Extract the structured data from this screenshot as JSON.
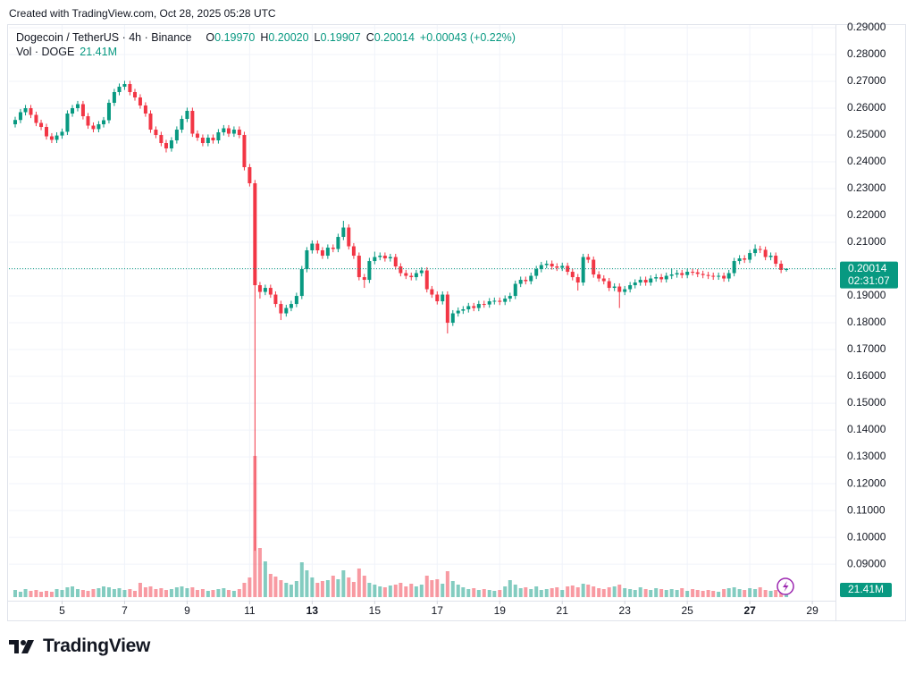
{
  "header": {
    "created": "Created with TradingView.com, Oct 28, 2025 05:28 UTC",
    "brand": "TradingView"
  },
  "chart_data": {
    "type": "candlestick",
    "title": "Dogecoin / TetherUS · 4h · Binance",
    "ohlc_legend": [
      {
        "key": "O",
        "value": "0.19970"
      },
      {
        "key": "H",
        "value": "0.20020"
      },
      {
        "key": "L",
        "value": "0.19907"
      },
      {
        "key": "C",
        "value": "0.20014"
      }
    ],
    "change": "+0.00043 (+0.22%)",
    "volume_title": "Vol · DOGE",
    "volume_last_label": "21.41M",
    "last_price": {
      "value": 0.20014,
      "label": "0.20014"
    },
    "countdown": "02:31:07",
    "up_color": "#089981",
    "down_color": "#f23645",
    "grid": true,
    "xlim": [
      3.3,
      29.74
    ],
    "xticks": [
      5,
      7,
      9,
      11,
      13,
      15,
      17,
      19,
      21,
      23,
      25,
      27,
      29
    ],
    "bold_xticks": [
      13,
      27
    ],
    "ylim": [
      0.0777,
      0.291
    ],
    "yticks": [
      {
        "value": 0.29,
        "label": "0.29000"
      },
      {
        "value": 0.28,
        "label": "0.28000"
      },
      {
        "value": 0.27,
        "label": "0.27000"
      },
      {
        "value": 0.26,
        "label": "0.26000"
      },
      {
        "value": 0.25,
        "label": "0.25000"
      },
      {
        "value": 0.24,
        "label": "0.24000"
      },
      {
        "value": 0.23,
        "label": "0.23000"
      },
      {
        "value": 0.22,
        "label": "0.22000"
      },
      {
        "value": 0.21,
        "label": "0.21000"
      },
      {
        "value": 0.2,
        "label": "0.20000"
      },
      {
        "value": 0.19,
        "label": "0.19000"
      },
      {
        "value": 0.18,
        "label": "0.18000"
      },
      {
        "value": 0.17,
        "label": "0.17000"
      },
      {
        "value": 0.16,
        "label": "0.16000"
      },
      {
        "value": 0.15,
        "label": "0.15000"
      },
      {
        "value": 0.14,
        "label": "0.14000"
      },
      {
        "value": 0.13,
        "label": "0.13000"
      },
      {
        "value": 0.12,
        "label": "0.12000"
      },
      {
        "value": 0.11,
        "label": "0.11000"
      },
      {
        "value": 0.1,
        "label": "0.10000"
      },
      {
        "value": 0.09,
        "label": "0.09000"
      }
    ],
    "volume_ylim": [
      0,
      800
    ],
    "x": [
      3.5,
      3.67,
      3.83,
      4,
      4.17,
      4.33,
      4.5,
      4.67,
      4.83,
      5,
      5.17,
      5.33,
      5.5,
      5.67,
      5.83,
      6,
      6.17,
      6.33,
      6.5,
      6.67,
      6.83,
      7,
      7.17,
      7.33,
      7.5,
      7.67,
      7.83,
      8,
      8.17,
      8.33,
      8.5,
      8.67,
      8.83,
      9,
      9.17,
      9.33,
      9.5,
      9.67,
      9.83,
      10,
      10.17,
      10.33,
      10.5,
      10.67,
      10.83,
      11,
      11.17,
      11.33,
      11.5,
      11.67,
      11.83,
      12,
      12.17,
      12.33,
      12.5,
      12.67,
      12.83,
      13,
      13.17,
      13.33,
      13.5,
      13.67,
      13.83,
      14,
      14.17,
      14.33,
      14.5,
      14.67,
      14.83,
      15,
      15.17,
      15.33,
      15.5,
      15.67,
      15.83,
      16,
      16.17,
      16.33,
      16.5,
      16.67,
      16.83,
      17,
      17.17,
      17.33,
      17.5,
      17.67,
      17.83,
      18,
      18.17,
      18.33,
      18.5,
      18.67,
      18.83,
      19,
      19.17,
      19.33,
      19.5,
      19.67,
      19.83,
      20,
      20.17,
      20.33,
      20.5,
      20.67,
      20.83,
      21,
      21.17,
      21.33,
      21.5,
      21.67,
      21.83,
      22,
      22.17,
      22.33,
      22.5,
      22.67,
      22.83,
      23,
      23.17,
      23.33,
      23.5,
      23.67,
      23.83,
      24,
      24.17,
      24.33,
      24.5,
      24.67,
      24.83,
      25,
      25.17,
      25.33,
      25.5,
      25.67,
      25.83,
      26,
      26.17,
      26.33,
      26.5,
      26.67,
      26.83,
      27,
      27.17,
      27.33,
      27.5,
      27.67,
      27.83,
      28,
      28.17
    ],
    "open": [
      0.254,
      0.2556,
      0.2585,
      0.26,
      0.2575,
      0.2545,
      0.253,
      0.2495,
      0.2482,
      0.2498,
      0.2512,
      0.258,
      0.26,
      0.2615,
      0.257,
      0.2535,
      0.2522,
      0.254,
      0.2555,
      0.262,
      0.266,
      0.268,
      0.269,
      0.266,
      0.264,
      0.261,
      0.258,
      0.252,
      0.25,
      0.247,
      0.245,
      0.248,
      0.252,
      0.256,
      0.259,
      0.2505,
      0.249,
      0.247,
      0.249,
      0.248,
      0.251,
      0.2525,
      0.2505,
      0.252,
      0.25,
      0.238,
      0.232,
      0.194,
      0.1915,
      0.193,
      0.1905,
      0.187,
      0.1835,
      0.1855,
      0.187,
      0.19,
      0.2,
      0.207,
      0.2095,
      0.207,
      0.205,
      0.208,
      0.2075,
      0.212,
      0.2155,
      0.2085,
      0.205,
      0.197,
      0.196,
      0.203,
      0.2045,
      0.205,
      0.204,
      0.2045,
      0.201,
      0.1985,
      0.1975,
      0.197,
      0.1985,
      0.1995,
      0.1925,
      0.1905,
      0.188,
      0.1905,
      0.18,
      0.1835,
      0.1845,
      0.185,
      0.1862,
      0.1855,
      0.187,
      0.1868,
      0.188,
      0.1882,
      0.1878,
      0.189,
      0.19,
      0.1945,
      0.196,
      0.1955,
      0.1975,
      0.2,
      0.2015,
      0.202,
      0.201,
      0.2005,
      0.2012,
      0.199,
      0.197,
      0.195,
      0.2045,
      0.2035,
      0.198,
      0.1965,
      0.1955,
      0.193,
      0.1935,
      0.1915,
      0.1925,
      0.194,
      0.195,
      0.196,
      0.195,
      0.1965,
      0.197,
      0.1962,
      0.1975,
      0.198,
      0.1985,
      0.1978,
      0.199,
      0.1988,
      0.1982,
      0.1978,
      0.1975,
      0.1972,
      0.1975,
      0.1965,
      0.1985,
      0.203,
      0.204,
      0.2035,
      0.206,
      0.2075,
      0.2072,
      0.2045,
      0.205,
      0.202,
      0.1997
    ],
    "high": [
      0.2568,
      0.2597,
      0.2612,
      0.2612,
      0.2587,
      0.2557,
      0.2542,
      0.2507,
      0.251,
      0.2524,
      0.2592,
      0.2612,
      0.2627,
      0.2627,
      0.2582,
      0.2547,
      0.2552,
      0.2567,
      0.2632,
      0.2672,
      0.2692,
      0.2702,
      0.2702,
      0.2672,
      0.2652,
      0.2622,
      0.2592,
      0.2532,
      0.2512,
      0.2482,
      0.2492,
      0.2532,
      0.2572,
      0.2602,
      0.2602,
      0.2517,
      0.2502,
      0.2502,
      0.2502,
      0.2522,
      0.2537,
      0.2537,
      0.2532,
      0.2532,
      0.2512,
      0.2392,
      0.2332,
      0.1952,
      0.1942,
      0.1942,
      0.1917,
      0.1882,
      0.1867,
      0.1882,
      0.1912,
      0.2012,
      0.2082,
      0.2107,
      0.2107,
      0.2082,
      0.2092,
      0.2092,
      0.2132,
      0.218,
      0.2167,
      0.2097,
      0.2062,
      0.1982,
      0.2042,
      0.2065,
      0.2062,
      0.2062,
      0.2057,
      0.2057,
      0.2022,
      0.1997,
      0.1987,
      0.1997,
      0.2007,
      0.2007,
      0.1937,
      0.1917,
      0.1917,
      0.1917,
      0.1847,
      0.1857,
      0.1862,
      0.1874,
      0.1874,
      0.1882,
      0.1882,
      0.1892,
      0.1894,
      0.1894,
      0.1902,
      0.1912,
      0.1957,
      0.1972,
      0.1972,
      0.1987,
      0.2012,
      0.2027,
      0.2032,
      0.2032,
      0.2022,
      0.2024,
      0.2024,
      0.2002,
      0.1982,
      0.2057,
      0.2057,
      0.2047,
      0.1992,
      0.1977,
      0.1967,
      0.1947,
      0.1947,
      0.1937,
      0.1952,
      0.1962,
      0.1972,
      0.1972,
      0.1977,
      0.1982,
      0.1982,
      0.1987,
      0.2002,
      0.1997,
      0.1997,
      0.2002,
      0.2002,
      0.2,
      0.1994,
      0.199,
      0.1987,
      0.1987,
      0.1987,
      0.1997,
      0.2042,
      0.2052,
      0.2052,
      0.2072,
      0.2092,
      0.2087,
      0.2084,
      0.2062,
      0.2062,
      0.2032,
      0.2002
    ],
    "low": [
      0.2528,
      0.2544,
      0.2573,
      0.2563,
      0.2533,
      0.2518,
      0.2483,
      0.247,
      0.247,
      0.2486,
      0.25,
      0.2568,
      0.2588,
      0.2558,
      0.2523,
      0.251,
      0.251,
      0.2528,
      0.2543,
      0.2608,
      0.2648,
      0.2668,
      0.2648,
      0.2628,
      0.2598,
      0.2568,
      0.2508,
      0.2488,
      0.2458,
      0.2435,
      0.2438,
      0.2468,
      0.2508,
      0.2548,
      0.2493,
      0.2478,
      0.2458,
      0.2458,
      0.2468,
      0.2468,
      0.2498,
      0.2493,
      0.2493,
      0.2488,
      0.2368,
      0.2308,
      0.095,
      0.189,
      0.1903,
      0.1893,
      0.1858,
      0.181,
      0.1823,
      0.1843,
      0.1858,
      0.1888,
      0.1988,
      0.2058,
      0.2058,
      0.2038,
      0.2038,
      0.2063,
      0.2063,
      0.2108,
      0.2073,
      0.2038,
      0.1958,
      0.193,
      0.1948,
      0.2018,
      0.2033,
      0.2028,
      0.2028,
      0.1998,
      0.1973,
      0.1963,
      0.1958,
      0.1958,
      0.1973,
      0.1913,
      0.1893,
      0.1868,
      0.1868,
      0.176,
      0.1788,
      0.1823,
      0.1833,
      0.1838,
      0.1843,
      0.1843,
      0.1856,
      0.1856,
      0.1868,
      0.1866,
      0.1866,
      0.1878,
      0.1888,
      0.1933,
      0.1943,
      0.1943,
      0.1963,
      0.1988,
      0.2003,
      0.1998,
      0.1993,
      0.1993,
      0.1978,
      0.1958,
      0.192,
      0.1938,
      0.2023,
      0.1968,
      0.1953,
      0.1943,
      0.1918,
      0.1918,
      0.1855,
      0.1903,
      0.1913,
      0.1928,
      0.1938,
      0.1938,
      0.1938,
      0.1953,
      0.195,
      0.195,
      0.1963,
      0.1968,
      0.1966,
      0.1966,
      0.1976,
      0.197,
      0.1966,
      0.1963,
      0.196,
      0.196,
      0.1953,
      0.1953,
      0.1973,
      0.2018,
      0.2023,
      0.2023,
      0.2048,
      0.206,
      0.2033,
      0.2033,
      0.2008,
      0.1985,
      0.19907
    ],
    "close": [
      0.2556,
      0.2585,
      0.26,
      0.2575,
      0.2545,
      0.253,
      0.2495,
      0.2482,
      0.2498,
      0.2512,
      0.258,
      0.26,
      0.2615,
      0.257,
      0.2535,
      0.2522,
      0.254,
      0.2555,
      0.262,
      0.266,
      0.268,
      0.269,
      0.266,
      0.264,
      0.261,
      0.258,
      0.252,
      0.25,
      0.247,
      0.245,
      0.248,
      0.252,
      0.256,
      0.259,
      0.2505,
      0.249,
      0.247,
      0.249,
      0.248,
      0.251,
      0.2525,
      0.2505,
      0.252,
      0.25,
      0.238,
      0.232,
      0.194,
      0.1915,
      0.193,
      0.1905,
      0.187,
      0.1835,
      0.1855,
      0.187,
      0.19,
      0.2,
      0.207,
      0.2095,
      0.207,
      0.205,
      0.208,
      0.2075,
      0.212,
      0.2155,
      0.2085,
      0.205,
      0.197,
      0.196,
      0.203,
      0.2045,
      0.205,
      0.204,
      0.2045,
      0.201,
      0.1985,
      0.1975,
      0.197,
      0.1985,
      0.1995,
      0.1925,
      0.1905,
      0.188,
      0.1905,
      0.18,
      0.1835,
      0.1845,
      0.185,
      0.1862,
      0.1855,
      0.187,
      0.1868,
      0.188,
      0.1882,
      0.1878,
      0.189,
      0.19,
      0.1945,
      0.196,
      0.1955,
      0.1975,
      0.2,
      0.2015,
      0.202,
      0.201,
      0.2005,
      0.2012,
      0.199,
      0.197,
      0.195,
      0.2045,
      0.2035,
      0.198,
      0.1965,
      0.1955,
      0.193,
      0.1935,
      0.1915,
      0.1925,
      0.194,
      0.195,
      0.196,
      0.195,
      0.1965,
      0.197,
      0.1962,
      0.1975,
      0.198,
      0.1985,
      0.1978,
      0.199,
      0.1988,
      0.1982,
      0.1978,
      0.1975,
      0.1972,
      0.1975,
      0.1965,
      0.1985,
      0.203,
      0.204,
      0.2035,
      0.206,
      0.2075,
      0.2072,
      0.2045,
      0.205,
      0.202,
      0.1997,
      0.20014
    ],
    "volume": [
      40,
      30,
      45,
      35,
      40,
      30,
      35,
      30,
      45,
      40,
      55,
      60,
      45,
      40,
      35,
      45,
      50,
      60,
      55,
      45,
      50,
      40,
      45,
      35,
      80,
      55,
      60,
      45,
      50,
      40,
      45,
      55,
      60,
      50,
      55,
      40,
      45,
      35,
      40,
      45,
      50,
      40,
      35,
      45,
      80,
      110,
      790,
      275,
      200,
      130,
      115,
      95,
      80,
      70,
      90,
      195,
      150,
      110,
      80,
      90,
      95,
      120,
      100,
      150,
      110,
      85,
      160,
      120,
      80,
      70,
      60,
      55,
      65,
      70,
      80,
      60,
      75,
      60,
      70,
      120,
      95,
      100,
      75,
      145,
      90,
      70,
      55,
      45,
      50,
      40,
      45,
      40,
      35,
      40,
      60,
      95,
      70,
      50,
      55,
      45,
      60,
      40,
      45,
      50,
      55,
      40,
      60,
      65,
      55,
      75,
      70,
      60,
      50,
      45,
      55,
      60,
      70,
      50,
      45,
      40,
      55,
      45,
      40,
      50,
      45,
      40,
      45,
      40,
      50,
      35,
      45,
      40,
      35,
      40,
      35,
      30,
      45,
      50,
      55,
      45,
      40,
      50,
      45,
      55,
      40,
      35,
      40,
      30,
      21.41
    ]
  }
}
